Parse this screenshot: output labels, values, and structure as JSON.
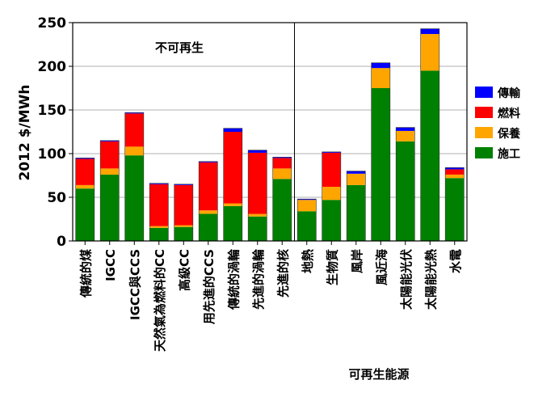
{
  "chart_data": {
    "type": "bar",
    "stacked": true,
    "ylabel": "2012 $/MWh",
    "ylim": [
      0,
      250
    ],
    "yticks": [
      0,
      50,
      100,
      150,
      200,
      250
    ],
    "grid": "horizontal",
    "legend_position": "right",
    "groups": [
      {
        "label": "不可再生",
        "categories": [
          "傳統的煤",
          "IGCC",
          "IGCC與CCS",
          "天然氣為燃料的CC",
          "高級CC",
          "用先進的CCS",
          "傳統的渦輪",
          "先進的渦輪",
          "先進的核"
        ]
      },
      {
        "label": "可再生能源",
        "categories": [
          "地熱",
          "生物質",
          "風岸",
          "風近海",
          "太陽能光伏",
          "太陽能光熱",
          "水電"
        ]
      }
    ],
    "categories": [
      "傳統的煤",
      "IGCC",
      "IGCC與CCS",
      "天然氣為燃料的CC",
      "高級CC",
      "用先進的CCS",
      "傳統的渦輪",
      "先進的渦輪",
      "先進的核",
      "地熱",
      "生物質",
      "風岸",
      "風近海",
      "太陽能光伏",
      "太陽能光熱",
      "水電"
    ],
    "series": [
      {
        "name": "施工",
        "color": "#008000",
        "values": [
          60,
          76,
          98,
          15,
          16,
          31,
          40,
          28,
          71,
          34,
          47,
          64,
          175,
          114,
          195,
          72
        ]
      },
      {
        "name": "保養",
        "color": "#ffa500",
        "values": [
          4,
          7,
          10,
          2,
          2,
          4,
          3,
          3,
          12,
          13,
          15,
          13,
          23,
          12,
          42,
          4
        ]
      },
      {
        "name": "燃料",
        "color": "#ff0000",
        "values": [
          30,
          31,
          38,
          48,
          46,
          55,
          82,
          70,
          12,
          0,
          39,
          0,
          0,
          0,
          0,
          6
        ]
      },
      {
        "name": "傳輸",
        "color": "#0000ff",
        "values": [
          1,
          1,
          1,
          1,
          1,
          1,
          4,
          3,
          1,
          1,
          1,
          3,
          6,
          4,
          6,
          2
        ]
      }
    ],
    "legend": [
      {
        "name": "傳輸",
        "color": "#0000ff"
      },
      {
        "name": "燃料",
        "color": "#ff0000"
      },
      {
        "name": "保養",
        "color": "#ffa500"
      },
      {
        "name": "施工",
        "color": "#008000"
      }
    ]
  }
}
